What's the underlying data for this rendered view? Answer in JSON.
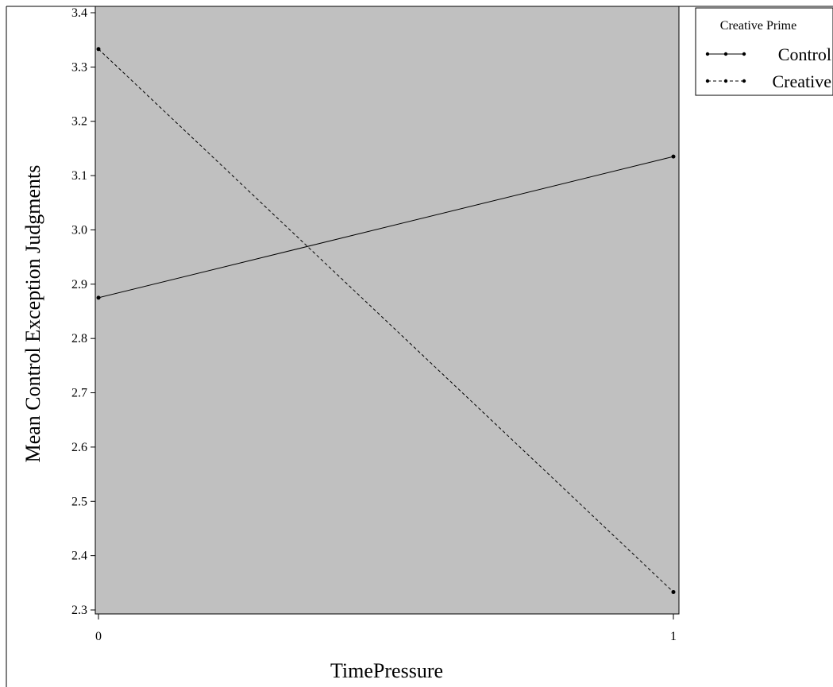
{
  "chart_data": {
    "type": "line",
    "xlabel": "TimePressure",
    "ylabel": "Mean Control Exception Judgments",
    "x": [
      0,
      1
    ],
    "x_ticks": [
      "0",
      "1"
    ],
    "xlim": [
      0,
      1
    ],
    "ylim": [
      2.3,
      3.4
    ],
    "y_ticks": [
      "2.3",
      "2.4",
      "2.5",
      "2.6",
      "2.7",
      "2.8",
      "2.9",
      "3.0",
      "3.1",
      "3.2",
      "3.3",
      "3.4"
    ],
    "grid": false,
    "plot_background": "#c0c0c0",
    "legend": {
      "title": "Creative Prime",
      "position": "right"
    },
    "series": [
      {
        "name": "Control",
        "values": [
          2.875,
          3.135
        ],
        "line_style": "solid",
        "color": "#000000"
      },
      {
        "name": "Creative",
        "values": [
          3.333,
          2.333
        ],
        "line_style": "dashed",
        "color": "#000000"
      }
    ]
  }
}
